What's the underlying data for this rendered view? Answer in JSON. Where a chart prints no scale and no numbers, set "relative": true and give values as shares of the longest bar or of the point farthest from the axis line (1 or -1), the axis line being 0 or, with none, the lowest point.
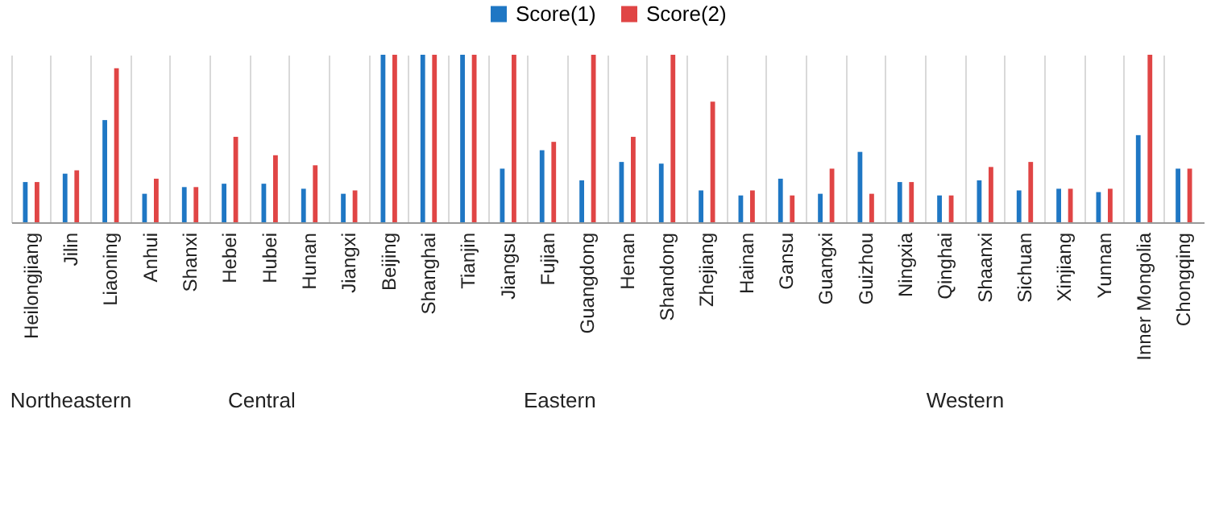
{
  "chart_data": {
    "type": "bar",
    "relative": true,
    "grid": "x",
    "legend": "top",
    "categories": [
      "Heilongjiang",
      "Jilin",
      "Liaoning",
      "Anhui",
      "Shanxi",
      "Hebei",
      "Hubei",
      "Hunan",
      "Jiangxi",
      "Beijing",
      "Shanghai",
      "Tianjin",
      "Jiangsu",
      "Fujian",
      "Guangdong",
      "Henan",
      "Shandong",
      "Zhejiang",
      "Hainan",
      "Gansu",
      "Guangxi",
      "Guizhou",
      "Ningxia",
      "Qinghai",
      "Shaanxi",
      "Sichuan",
      "Xinjiang",
      "Yunnan",
      "Inner Mongolia",
      "Chongqing"
    ],
    "series": [
      {
        "name": "Score(1)",
        "color": "#1f77c4",
        "values": [
          0.24,
          0.29,
          0.61,
          0.17,
          0.21,
          0.23,
          0.23,
          0.2,
          0.17,
          1,
          1,
          1,
          0.32,
          0.43,
          0.25,
          0.36,
          0.35,
          0.19,
          0.16,
          0.26,
          0.17,
          0.42,
          0.24,
          0.16,
          0.25,
          0.19,
          0.2,
          0.18,
          0.52,
          0.32
        ]
      },
      {
        "name": "Score(2)",
        "color": "#e04545",
        "values": [
          0.24,
          0.31,
          0.92,
          0.26,
          0.21,
          0.51,
          0.4,
          0.34,
          0.19,
          1,
          1,
          1,
          1,
          0.48,
          1,
          0.51,
          1,
          0.72,
          0.19,
          0.16,
          0.32,
          0.17,
          0.24,
          0.16,
          0.33,
          0.36,
          0.2,
          0.2,
          1,
          0.32
        ]
      }
    ],
    "annotations": [
      "Northeastern",
      "Central",
      "Eastern",
      "Western"
    ]
  }
}
